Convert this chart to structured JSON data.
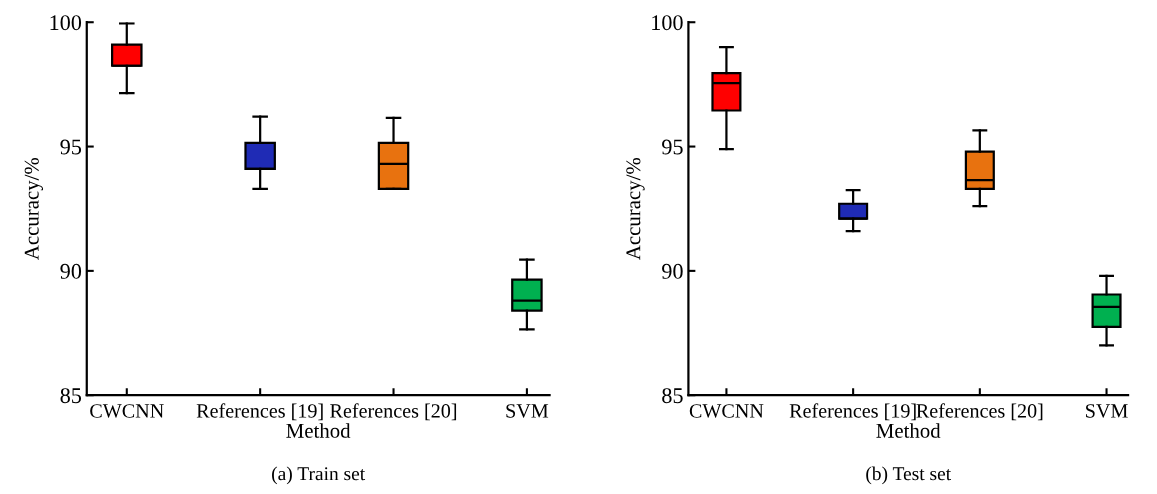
{
  "chart_data": [
    {
      "type": "box",
      "xlabel": "Method",
      "ylabel": "Accuracy/%",
      "annotations": [
        "(a) Train set"
      ],
      "categories": [
        "CWCNN",
        "References [19]",
        "References [20]",
        "SVM"
      ],
      "colors": [
        "#ff0000",
        "#1f2bb5",
        "#e8720f",
        "#00b050"
      ],
      "ylim": [
        85,
        100
      ],
      "yticks": [
        85,
        90,
        95,
        100
      ],
      "grid": false,
      "legend": false,
      "boxes": [
        {
          "low": 97.15,
          "q1": 98.25,
          "median": 98.25,
          "q3": 99.1,
          "high": 99.95
        },
        {
          "low": 93.3,
          "q1": 94.1,
          "median": 94.1,
          "q3": 95.15,
          "high": 96.2
        },
        {
          "low": 93.3,
          "q1": 93.3,
          "median": 94.3,
          "q3": 95.15,
          "high": 96.15
        },
        {
          "low": 87.65,
          "q1": 88.4,
          "median": 88.8,
          "q3": 89.65,
          "high": 90.45
        }
      ]
    },
    {
      "type": "box",
      "xlabel": "Method",
      "ylabel": "Accuracy/%",
      "annotations": [
        "(b) Test set"
      ],
      "categories": [
        "CWCNN",
        "References [19]",
        "References [20]",
        "SVM"
      ],
      "colors": [
        "#ff0000",
        "#1f2bb5",
        "#e8720f",
        "#00b050"
      ],
      "ylim": [
        85,
        100
      ],
      "yticks": [
        85,
        90,
        95,
        100
      ],
      "grid": false,
      "legend": false,
      "boxes": [
        {
          "low": 94.9,
          "q1": 96.45,
          "median": 97.55,
          "q3": 97.95,
          "high": 99.0
        },
        {
          "low": 91.6,
          "q1": 92.1,
          "median": 92.1,
          "q3": 92.7,
          "high": 93.25
        },
        {
          "low": 92.6,
          "q1": 93.3,
          "median": 93.65,
          "q3": 94.8,
          "high": 95.65
        },
        {
          "low": 87.0,
          "q1": 87.75,
          "median": 88.55,
          "q3": 89.05,
          "high": 89.8
        }
      ]
    }
  ]
}
